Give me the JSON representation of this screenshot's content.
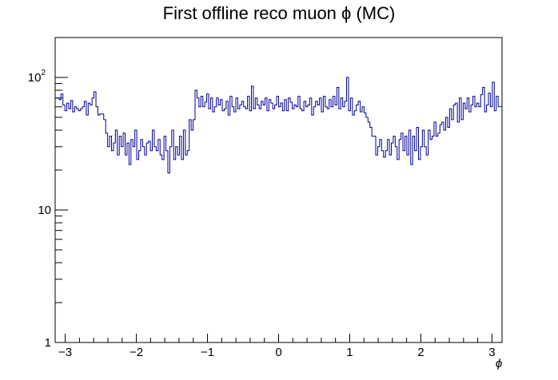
{
  "chart_data": {
    "type": "line",
    "title": "First offline reco muon ϕ (MC)",
    "xlabel": "ϕ",
    "ylabel": "",
    "yscale": "log",
    "xlim": [
      -3.1416,
      3.1416
    ],
    "ylim": [
      1,
      200
    ],
    "x_ticks": [
      -3,
      -2,
      -1,
      0,
      1,
      2,
      3
    ],
    "x_tick_labels": [
      "−3",
      "−2",
      "−1",
      "0",
      "1",
      "2",
      "3"
    ],
    "y_ticks": [
      {
        "value": 1,
        "base": "1",
        "exp": ""
      },
      {
        "value": 10,
        "base": "10",
        "exp": ""
      },
      {
        "value": 100,
        "base": "10",
        "exp": "2"
      }
    ],
    "grid": false,
    "line_color": "#000099",
    "series": [
      {
        "values": [
          70,
          70,
          68,
          75,
          62,
          56,
          64,
          58,
          67,
          55,
          60,
          58,
          56,
          58,
          60,
          66,
          52,
          64,
          62,
          70,
          78,
          60,
          52,
          53,
          53,
          48,
          38,
          30,
          36,
          28,
          32,
          40,
          26,
          36,
          30,
          38,
          26,
          32,
          22,
          34,
          30,
          40,
          24,
          28,
          34,
          30,
          26,
          32,
          33,
          28,
          40,
          30,
          28,
          34,
          26,
          24,
          36,
          28,
          19,
          30,
          40,
          24,
          30,
          26,
          36,
          24,
          40,
          26,
          28,
          48,
          40,
          48,
          80,
          70,
          60,
          72,
          60,
          65,
          75,
          58,
          70,
          55,
          60,
          70,
          62,
          68,
          56,
          58,
          66,
          52,
          72,
          60,
          55,
          70,
          58,
          62,
          66,
          60,
          58,
          72,
          56,
          86,
          58,
          70,
          62,
          58,
          66,
          62,
          70,
          56,
          68,
          64,
          58,
          62,
          72,
          60,
          64,
          56,
          68,
          56,
          70,
          65,
          58,
          62,
          60,
          72,
          58,
          56,
          66,
          60,
          62,
          70,
          52,
          60,
          66,
          62,
          70,
          55,
          72,
          60,
          58,
          68,
          60,
          72,
          62,
          84,
          58,
          70,
          60,
          66,
          100,
          56,
          70,
          52,
          56,
          62,
          66,
          55,
          60,
          54,
          50,
          46,
          42,
          36,
          36,
          26,
          30,
          34,
          28,
          25,
          28,
          34,
          26,
          32,
          36,
          30,
          24,
          34,
          38,
          28,
          36,
          26,
          40,
          22,
          36,
          28,
          42,
          24,
          30,
          40,
          30,
          26,
          40,
          34,
          36,
          46,
          36,
          38,
          44,
          46,
          40,
          50,
          42,
          58,
          48,
          62,
          64,
          46,
          70,
          48,
          64,
          58,
          70,
          55,
          62,
          72,
          60,
          64,
          60,
          74,
          84,
          55,
          62,
          76,
          60,
          92,
          56,
          72,
          60,
          60
        ]
      }
    ]
  }
}
